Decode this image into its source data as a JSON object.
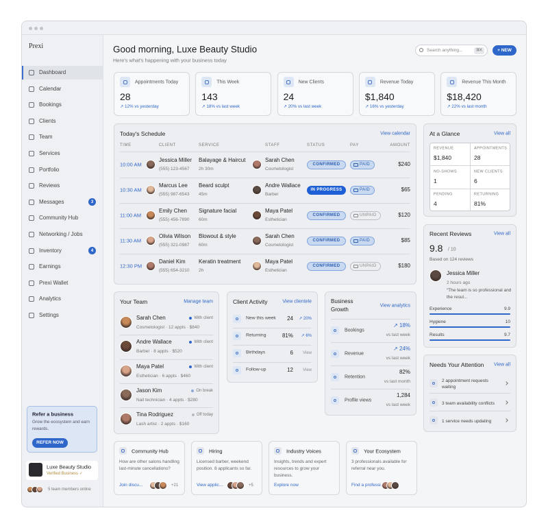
{
  "app": {
    "brand": "Prexi"
  },
  "sidebar": {
    "nav": [
      {
        "label": "Dashboard"
      },
      {
        "label": "Calendar"
      },
      {
        "label": "Bookings"
      },
      {
        "label": "Clients"
      },
      {
        "label": "Team"
      },
      {
        "label": "Services"
      },
      {
        "label": "Portfolio"
      },
      {
        "label": "Reviews"
      },
      {
        "label": "Messages",
        "badge": 3
      },
      {
        "label": "Community Hub"
      },
      {
        "label": "Networking / Jobs"
      },
      {
        "label": "Inventory",
        "badge": 4
      },
      {
        "label": "Earnings"
      },
      {
        "label": "Prexi Wallet"
      },
      {
        "label": "Analytics"
      },
      {
        "label": "Settings"
      }
    ],
    "promo": {
      "title": "Refer a business",
      "text": "Grow the ecosystem and earn rewards.",
      "button": "REFER NOW"
    },
    "profile": {
      "name": "Luxe Beauty Studio",
      "status": "Verified Business ✓"
    },
    "team_online": "5 team members online"
  },
  "header": {
    "greeting": "Good morning, Luxe Beauty Studio",
    "subtitle": "Here's what's happening with your business today",
    "search": "Search anything...",
    "shortcut": "⌘K",
    "new_button": "+ NEW"
  },
  "stats": [
    {
      "label": "Appointments Today",
      "value": "28",
      "change": "↗ 12% vs yesterday"
    },
    {
      "label": "This Week",
      "value": "143",
      "change": "↗ 18% vs last week"
    },
    {
      "label": "New Clients",
      "value": "24",
      "change": "↗ 20% vs last week"
    },
    {
      "label": "Revenue Today",
      "value": "$1,840",
      "change": "↗ 16% vs yesterday"
    },
    {
      "label": "Revenue This Month",
      "value": "$18,420",
      "change": "↗ 22% vs last month"
    }
  ],
  "schedule": {
    "title": "Today's Schedule",
    "link": "View calendar",
    "columns": [
      "TIME",
      "CLIENT",
      "SERVICE",
      "STAFF",
      "STATUS",
      "PAY",
      "AMOUNT"
    ],
    "rows": [
      {
        "time": "10:00 AM",
        "client": "Jessica Miller",
        "phone": "(555) 123-4567",
        "service": "Balayage & Haircut",
        "duration": "2h 30m",
        "staff": "Sarah Chen",
        "role": "Cosmetologist",
        "status": "CONFIRMED",
        "status_style": "light",
        "pay": "PAID",
        "pay_style": "paid",
        "amount": "$240"
      },
      {
        "time": "10:30 AM",
        "client": "Marcus Lee",
        "phone": "(555) 987-6543",
        "service": "Beard sculpt",
        "duration": "45m",
        "staff": "Andre Wallace",
        "role": "Barber",
        "status": "IN PROGRESS",
        "status_style": "solid",
        "pay": "PAID",
        "pay_style": "paid",
        "amount": "$65"
      },
      {
        "time": "11:00 AM",
        "client": "Emily Chen",
        "phone": "(555) 456-7890",
        "service": "Signature facial",
        "duration": "60m",
        "staff": "Maya Patel",
        "role": "Esthetician",
        "status": "CONFIRMED",
        "status_style": "light",
        "pay": "UNPAID",
        "pay_style": "unpaid",
        "amount": "$120"
      },
      {
        "time": "11:30 AM",
        "client": "Olivia Wilson",
        "phone": "(555) 321-0987",
        "service": "Blowout & style",
        "duration": "60m",
        "staff": "Sarah Chen",
        "role": "Cosmetologist",
        "status": "CONFIRMED",
        "status_style": "light",
        "pay": "PAID",
        "pay_style": "paid",
        "amount": "$85"
      },
      {
        "time": "12:30 PM",
        "client": "Daniel Kim",
        "phone": "(555) 654-3210",
        "service": "Keratin treatment",
        "duration": "2h",
        "staff": "Maya Patel",
        "role": "Esthetician",
        "status": "CONFIRMED",
        "status_style": "light",
        "pay": "UNPAID",
        "pay_style": "unpaid",
        "amount": "$180"
      }
    ]
  },
  "glance": {
    "title": "At a Glance",
    "link": "View all",
    "cells": [
      {
        "label": "REVENUE",
        "value": "$1,840"
      },
      {
        "label": "APPOINTMENTS",
        "value": "28"
      },
      {
        "label": "NO-SHOWS",
        "value": "1"
      },
      {
        "label": "NEW CLIENTS",
        "value": "6"
      },
      {
        "label": "PENDING",
        "value": "4"
      },
      {
        "label": "RETURNING",
        "value": "81%"
      }
    ]
  },
  "reviews": {
    "title": "Recent Reviews",
    "link": "View all",
    "score": "9.8",
    "out_of": "/ 10",
    "based_on": "Based on 124 reviews",
    "reviewer": "Jessica Miller",
    "time": "2 hours ago",
    "quote": "“The team is so professional and the resul...",
    "ratings": [
      {
        "label": "Experience",
        "value": "9.9"
      },
      {
        "label": "Hygiene",
        "value": "10"
      },
      {
        "label": "Results",
        "value": "9.7"
      }
    ]
  },
  "attention": {
    "title": "Needs Your Attention",
    "link": "View all",
    "items": [
      "2 appointment requests waiting",
      "3 team availability conflicts",
      "1 service needs updating"
    ]
  },
  "team": {
    "title": "Your Team",
    "link": "Manage team",
    "members": [
      {
        "name": "Sarah Chen",
        "detail": "Cosmetologist · 12 appts · $840",
        "status": "With client",
        "dot": "#2f66c9"
      },
      {
        "name": "Andre Wallace",
        "detail": "Barber · 8 appts · $520",
        "status": "With client",
        "dot": "#2f66c9"
      },
      {
        "name": "Maya Patel",
        "detail": "Esthetician · 6 appts · $460",
        "status": "With client",
        "dot": "#2f66c9"
      },
      {
        "name": "Jason Kim",
        "detail": "Nail technician · 4 appts · $280",
        "status": "On break",
        "dot": "#8fa9d6"
      },
      {
        "name": "Tina Rodriguez",
        "detail": "Lash artist · 2 appts · $160",
        "status": "Off today",
        "dot": "#b5b9c0"
      }
    ]
  },
  "activity": {
    "title": "Client Activity",
    "link": "View clientele",
    "rows": [
      {
        "label": "New this week",
        "value": "24",
        "change": "↗ 20%",
        "color": "#2f66c9"
      },
      {
        "label": "Returning",
        "value": "81%",
        "change": "↗ 6%",
        "color": "#2f66c9"
      },
      {
        "label": "Birthdays",
        "value": "6",
        "change": "View",
        "color": "#8a8f98"
      },
      {
        "label": "Follow-up",
        "value": "12",
        "change": "View",
        "color": "#8a8f98"
      }
    ]
  },
  "growth": {
    "title": "Business Growth",
    "link": "View analytics",
    "rows": [
      {
        "label": "Bookings",
        "value": "↗ 18%",
        "sub": "vs last week",
        "color": "#2f66c9"
      },
      {
        "label": "Revenue",
        "value": "↗ 24%",
        "sub": "vs last week",
        "color": "#2f66c9"
      },
      {
        "label": "Retention",
        "value": "82%",
        "sub": "vs last month",
        "color": "#222"
      },
      {
        "label": "Profile views",
        "value": "1,284",
        "sub": "vs last week",
        "color": "#222"
      }
    ]
  },
  "cards": [
    {
      "title": "Community Hub",
      "text": "How are other salons handling last-minute cancellations?",
      "link": "Join discu...",
      "count": "+21"
    },
    {
      "title": "Hiring",
      "text": "Licensed barber, weekend position. 8 applicants so far.",
      "link": "View applic...",
      "count": "+5"
    },
    {
      "title": "Industry Voices",
      "text": "Insights, trends and expert resources to grow your business.",
      "link": "Explore now"
    },
    {
      "title": "Your Ecosystem",
      "text": "3 professionals available for referral near you.",
      "link": "Find a professi...",
      "count": ""
    }
  ]
}
